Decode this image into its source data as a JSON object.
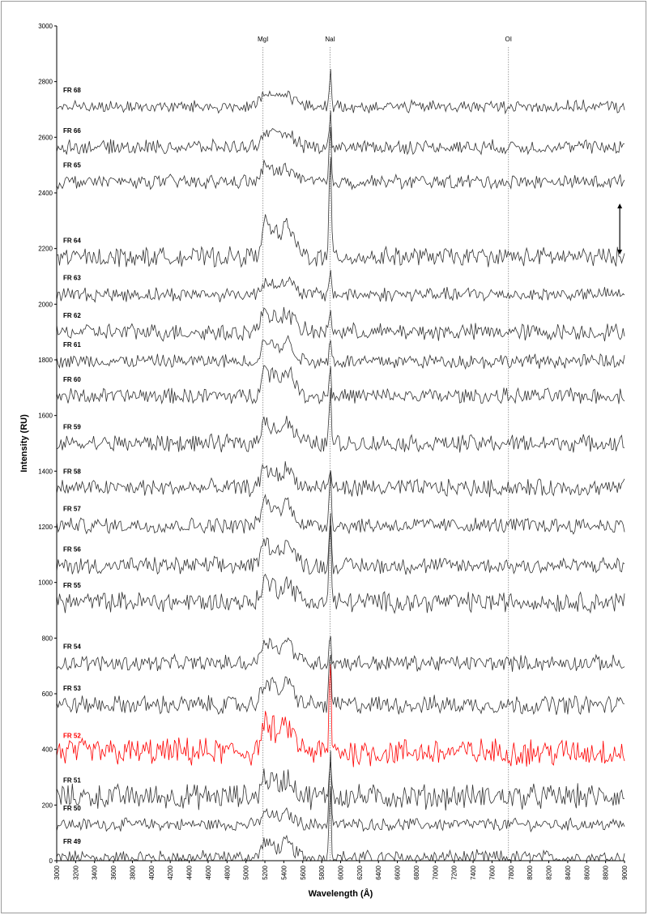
{
  "chart_data": {
    "type": "line",
    "title": "",
    "xlabel": "Wavelength (Å)",
    "ylabel": "Intensity (RU)",
    "xlim": [
      3000,
      9000
    ],
    "ylim": [
      0,
      3000
    ],
    "x_ticks": [
      3000,
      3200,
      3400,
      3600,
      3800,
      4000,
      4200,
      4400,
      4600,
      4800,
      5000,
      5200,
      5400,
      5600,
      5800,
      6000,
      6200,
      6400,
      6600,
      6800,
      7000,
      7200,
      7400,
      7600,
      7800,
      8000,
      8200,
      8400,
      8600,
      8800,
      9000
    ],
    "y_ticks": [
      0,
      200,
      400,
      600,
      800,
      1000,
      1200,
      1400,
      1600,
      1800,
      2000,
      2200,
      2400,
      2600,
      2800,
      3000
    ],
    "grid": false,
    "legend": "none",
    "spectral_lines": [
      {
        "name": "MgI",
        "x": 5180
      },
      {
        "name": "NaI",
        "x": 5890
      },
      {
        "name": "OI",
        "x": 7774
      }
    ],
    "scale_bar": {
      "x": 8950,
      "y_from": 2190,
      "y_to": 2350
    },
    "series": [
      {
        "name": "FR 49",
        "baseline": 10,
        "amp": 1.0,
        "peak": 300,
        "mg": 55,
        "color": "#333333"
      },
      {
        "name": "FR 50",
        "baseline": 130,
        "amp": 0.8,
        "peak": 290,
        "mg": 40,
        "color": "#333333"
      },
      {
        "name": "FR 51",
        "baseline": 230,
        "amp": 1.6,
        "peak": 180,
        "mg": 70,
        "color": "#333333"
      },
      {
        "name": "FR 52",
        "baseline": 390,
        "amp": 1.8,
        "peak": 350,
        "mg": 100,
        "color": "#ff0000"
      },
      {
        "name": "FR 53",
        "baseline": 560,
        "amp": 1.2,
        "peak": 220,
        "mg": 85,
        "color": "#333333"
      },
      {
        "name": "FR 54",
        "baseline": 710,
        "amp": 1.0,
        "peak": 120,
        "mg": 85,
        "color": "#333333"
      },
      {
        "name": "FR 55",
        "baseline": 930,
        "amp": 1.3,
        "peak": 330,
        "mg": 75,
        "color": "#333333"
      },
      {
        "name": "FR 56",
        "baseline": 1060,
        "amp": 1.1,
        "peak": 200,
        "mg": 85,
        "color": "#333333"
      },
      {
        "name": "FR 57",
        "baseline": 1205,
        "amp": 1.0,
        "peak": 230,
        "mg": 85,
        "color": "#333333"
      },
      {
        "name": "FR 58",
        "baseline": 1340,
        "amp": 1.1,
        "peak": 80,
        "mg": 70,
        "color": "#333333"
      },
      {
        "name": "FR 59",
        "baseline": 1500,
        "amp": 1.1,
        "peak": 220,
        "mg": 80,
        "color": "#333333"
      },
      {
        "name": "FR 60",
        "baseline": 1670,
        "amp": 1.0,
        "peak": 120,
        "mg": 100,
        "color": "#333333"
      },
      {
        "name": "FR 61",
        "baseline": 1795,
        "amp": 0.9,
        "peak": 90,
        "mg": 75,
        "color": "#333333"
      },
      {
        "name": "FR 62",
        "baseline": 1900,
        "amp": 1.1,
        "peak": 100,
        "mg": 75,
        "color": "#333333"
      },
      {
        "name": "FR 63",
        "baseline": 2035,
        "amp": 0.9,
        "peak": 100,
        "mg": 50,
        "color": "#333333"
      },
      {
        "name": "FR 64",
        "baseline": 2170,
        "amp": 1.2,
        "peak": 420,
        "mg": 120,
        "color": "#333333"
      },
      {
        "name": "FR 65",
        "baseline": 2440,
        "amp": 0.9,
        "peak": 200,
        "mg": 55,
        "color": "#333333"
      },
      {
        "name": "FR 66",
        "baseline": 2565,
        "amp": 0.9,
        "peak": 120,
        "mg": 55,
        "color": "#333333"
      },
      {
        "name": "FR 68",
        "baseline": 2710,
        "amp": 0.8,
        "peak": 140,
        "mg": 50,
        "color": "#333333"
      }
    ]
  }
}
